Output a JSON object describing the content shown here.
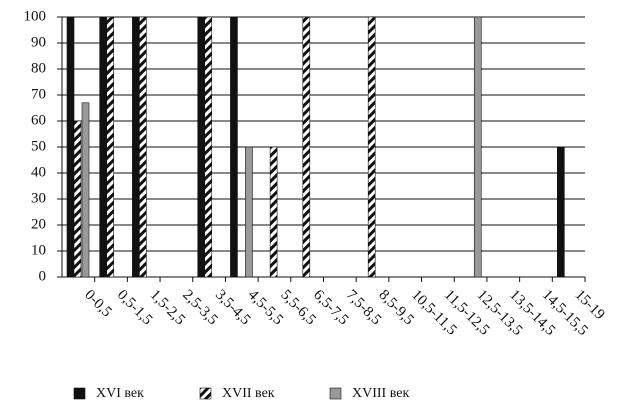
{
  "chart_data": {
    "type": "bar",
    "categories": [
      "0-0,5",
      "0,5-1,5",
      "1,5-2,5",
      "2,5-3,5",
      "3,5-4,5",
      "4,5-5,5",
      "5,5-6,5",
      "6,5-7,5",
      "7,5-8,5",
      "8,5-9,5",
      "10,5-11,5",
      "11,5-12,5",
      "12,5-13,5",
      "13,5-14,5",
      "14,5-15,5",
      "15-19"
    ],
    "series": [
      {
        "name": "XVI век",
        "color": "#111111",
        "fill_style": "solid",
        "values": [
          100,
          100,
          100,
          null,
          100,
          100,
          null,
          null,
          null,
          null,
          null,
          null,
          null,
          null,
          null,
          50
        ]
      },
      {
        "name": "XVII век",
        "color": "#111111",
        "fill_style": "hatched",
        "values": [
          60,
          100,
          100,
          null,
          100,
          null,
          50,
          100,
          null,
          100,
          null,
          null,
          null,
          null,
          null,
          null
        ]
      },
      {
        "name": "XVIII век",
        "color": "#999999",
        "fill_style": "solid",
        "values": [
          67,
          null,
          null,
          null,
          null,
          50,
          null,
          null,
          null,
          null,
          null,
          null,
          100,
          null,
          null,
          null
        ]
      }
    ],
    "ylim": [
      0,
      100
    ],
    "yticks": [
      0,
      10,
      20,
      30,
      40,
      50,
      60,
      70,
      80,
      90,
      100
    ],
    "grid": true,
    "legend": "bottom"
  }
}
